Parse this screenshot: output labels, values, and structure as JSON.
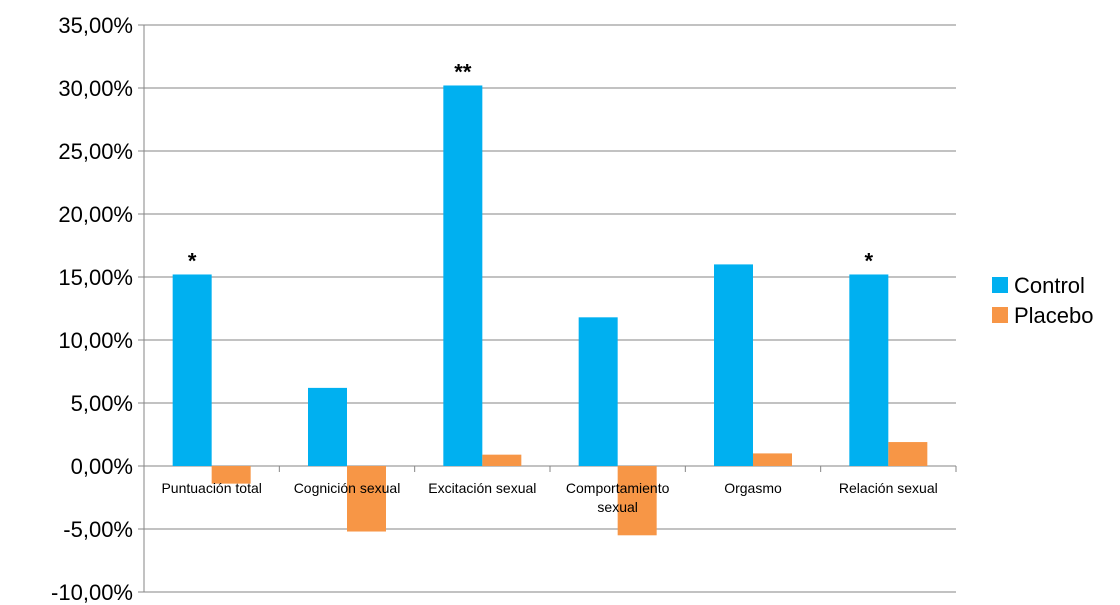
{
  "chart_data": {
    "type": "bar",
    "title": "",
    "xlabel": "",
    "ylabel": "",
    "categories": [
      [
        "Puntuación total"
      ],
      [
        "Cognición sexual"
      ],
      [
        "Excitación sexual"
      ],
      [
        "Comportamiento",
        "sexual"
      ],
      [
        "Orgasmo"
      ],
      [
        "Relación sexual"
      ]
    ],
    "series": [
      {
        "name": "Control",
        "color": "#00B0F0",
        "values": [
          15.2,
          6.2,
          30.2,
          11.8,
          16.0,
          15.2
        ]
      },
      {
        "name": "Placebo",
        "color": "#F79646",
        "values": [
          -1.4,
          -5.2,
          0.9,
          -5.5,
          1.0,
          1.9
        ]
      }
    ],
    "annotations": [
      "*",
      "",
      "**",
      "",
      "",
      "*"
    ],
    "ylim": [
      -10,
      35
    ],
    "yticks": [
      -10,
      -5,
      0,
      5,
      10,
      15,
      20,
      25,
      30,
      35
    ],
    "ytick_labels": [
      "-10,00%",
      "-5,00%",
      "0,00%",
      "5,00%",
      "10,00%",
      "15,00%",
      "20,00%",
      "25,00%",
      "30,00%",
      "35,00%"
    ],
    "grid": true,
    "legend_position": "right"
  }
}
